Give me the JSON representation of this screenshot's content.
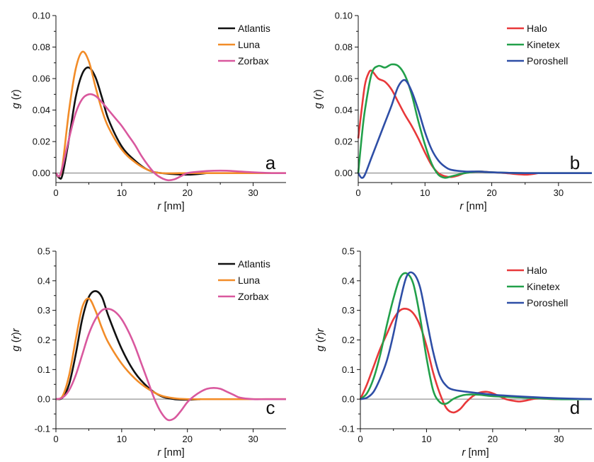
{
  "chart_data": [
    {
      "type": "line",
      "panel_label": "a",
      "xlabel": "r [nm]",
      "ylabel": "g (r)",
      "xlim": [
        0,
        35
      ],
      "ylim": [
        -0.006,
        0.1
      ],
      "xticks": [
        "0",
        "10",
        "20",
        "30"
      ],
      "yticks": [
        "0.00",
        "0.02",
        "0.04",
        "0.06",
        "0.08",
        "0.10"
      ],
      "legend_position": "top-right",
      "series": [
        {
          "name": "Atlantis",
          "color": "#111111",
          "x": [
            0,
            0.5,
            1,
            2,
            3,
            4,
            5,
            6,
            7,
            8,
            10,
            12,
            14,
            16,
            20,
            23
          ],
          "y": [
            0.0,
            -0.003,
            -0.001,
            0.022,
            0.048,
            0.063,
            0.067,
            0.061,
            0.048,
            0.034,
            0.017,
            0.008,
            0.002,
            0.0,
            -0.001,
            0.0
          ]
        },
        {
          "name": "Luna",
          "color": "#f28c28",
          "x": [
            0,
            0.5,
            1,
            2,
            3,
            4,
            5,
            6,
            7,
            8,
            10,
            12,
            14,
            16,
            20,
            25,
            35
          ],
          "y": [
            0.0,
            -0.002,
            0.005,
            0.04,
            0.066,
            0.077,
            0.071,
            0.055,
            0.04,
            0.029,
            0.015,
            0.007,
            0.002,
            0.0,
            0.0,
            0.0,
            0.0
          ]
        },
        {
          "name": "Zorbax",
          "color": "#d9589e",
          "x": [
            0,
            0.5,
            1,
            2,
            3,
            4,
            5,
            6,
            7,
            8,
            9,
            10,
            11,
            12,
            13,
            14,
            15,
            16,
            17,
            18,
            19,
            20,
            22,
            24,
            26,
            28,
            30,
            33,
            35
          ],
          "y": [
            0.0,
            -0.002,
            0.004,
            0.022,
            0.038,
            0.047,
            0.05,
            0.049,
            0.045,
            0.04,
            0.035,
            0.03,
            0.024,
            0.018,
            0.011,
            0.005,
            0.0,
            -0.003,
            -0.0045,
            -0.004,
            -0.002,
            0.0,
            0.001,
            0.0015,
            0.0015,
            0.001,
            0.0005,
            0.0,
            0.0
          ]
        }
      ]
    },
    {
      "type": "line",
      "panel_label": "b",
      "xlabel": "r [nm]",
      "ylabel": "g (r)",
      "xlim": [
        0,
        35
      ],
      "ylim": [
        -0.006,
        0.1
      ],
      "xticks": [
        "0",
        "10",
        "20",
        "30"
      ],
      "yticks": [
        "0.00",
        "0.02",
        "0.04",
        "0.06",
        "0.08",
        "0.10"
      ],
      "legend_position": "top-right",
      "series": [
        {
          "name": "Halo",
          "color": "#e8383a",
          "x": [
            0,
            0.5,
            1,
            1.5,
            2,
            3,
            4,
            5,
            6,
            7,
            8,
            9,
            10,
            11,
            12,
            13,
            14,
            15,
            16,
            18,
            20,
            22,
            25,
            27
          ],
          "y": [
            0.022,
            0.04,
            0.056,
            0.063,
            0.065,
            0.06,
            0.058,
            0.053,
            0.045,
            0.037,
            0.03,
            0.022,
            0.013,
            0.005,
            0.0,
            -0.002,
            -0.0025,
            -0.0015,
            0.0,
            0.001,
            0.0005,
            0.0,
            -0.001,
            0.0
          ]
        },
        {
          "name": "Kinetex",
          "color": "#22a04a",
          "x": [
            0,
            0.5,
            1,
            2,
            3,
            4,
            5,
            6,
            7,
            8,
            9,
            10,
            11,
            12,
            13,
            14,
            16,
            18,
            20,
            25,
            30,
            35
          ],
          "y": [
            0.0,
            0.022,
            0.04,
            0.063,
            0.068,
            0.067,
            0.069,
            0.068,
            0.062,
            0.05,
            0.033,
            0.018,
            0.006,
            -0.001,
            -0.003,
            -0.002,
            0.0,
            0.001,
            0.0005,
            0.0,
            0.0,
            0.0
          ]
        },
        {
          "name": "Poroshell",
          "color": "#2e4ea6",
          "x": [
            0,
            0.5,
            1,
            2,
            3,
            4,
            5,
            6,
            7,
            8,
            9,
            10,
            11,
            12,
            13,
            14,
            16,
            18,
            20,
            25,
            30,
            35
          ],
          "y": [
            0.0,
            -0.003,
            -0.001,
            0.01,
            0.021,
            0.032,
            0.043,
            0.055,
            0.059,
            0.052,
            0.04,
            0.026,
            0.015,
            0.008,
            0.004,
            0.002,
            0.001,
            0.001,
            0.0005,
            0.0,
            0.0,
            0.0
          ]
        }
      ]
    },
    {
      "type": "line",
      "panel_label": "c",
      "xlabel": "r [nm]",
      "ylabel": "g (r)r",
      "xlim": [
        0,
        35
      ],
      "ylim": [
        -0.1,
        0.5
      ],
      "xticks": [
        "0",
        "10",
        "20",
        "30"
      ],
      "yticks": [
        "-0.1",
        "0.0",
        "0.1",
        "0.2",
        "0.3",
        "0.4",
        "0.5"
      ],
      "legend_position": "top-right",
      "series": [
        {
          "name": "Atlantis",
          "color": "#111111",
          "x": [
            0,
            1,
            2,
            3,
            4,
            5,
            6,
            7,
            8,
            10,
            12,
            14,
            16,
            18,
            20,
            22
          ],
          "y": [
            0.0,
            0.005,
            0.05,
            0.15,
            0.27,
            0.345,
            0.365,
            0.345,
            0.28,
            0.17,
            0.09,
            0.04,
            0.01,
            0.0,
            -0.002,
            0.0
          ]
        },
        {
          "name": "Luna",
          "color": "#f28c28",
          "x": [
            0,
            1,
            2,
            3,
            4,
            5,
            6,
            7,
            8,
            10,
            12,
            14,
            16,
            18,
            20,
            25,
            30,
            35
          ],
          "y": [
            0.0,
            0.01,
            0.08,
            0.2,
            0.31,
            0.34,
            0.3,
            0.24,
            0.19,
            0.12,
            0.07,
            0.035,
            0.012,
            0.003,
            0.0,
            0.0,
            0.0,
            0.0
          ]
        },
        {
          "name": "Zorbax",
          "color": "#d9589e",
          "x": [
            0,
            1,
            2,
            3,
            4,
            5,
            6,
            7,
            8,
            9,
            10,
            11,
            12,
            13,
            14,
            15,
            16,
            17,
            18,
            19,
            20,
            21,
            22,
            23,
            24,
            25,
            26,
            27,
            28,
            30,
            32,
            35
          ],
          "y": [
            0.0,
            0.005,
            0.03,
            0.08,
            0.15,
            0.22,
            0.27,
            0.3,
            0.305,
            0.295,
            0.27,
            0.23,
            0.18,
            0.12,
            0.06,
            0.0,
            -0.045,
            -0.07,
            -0.065,
            -0.04,
            -0.01,
            0.01,
            0.025,
            0.035,
            0.038,
            0.035,
            0.025,
            0.015,
            0.005,
            0.0,
            0.0,
            0.0
          ]
        }
      ]
    },
    {
      "type": "line",
      "panel_label": "d",
      "xlabel": "r [nm]",
      "ylabel": "g (r)r",
      "xlim": [
        0,
        35
      ],
      "ylim": [
        -0.1,
        0.5
      ],
      "xticks": [
        "0",
        "10",
        "20",
        "30"
      ],
      "yticks": [
        "-0.1",
        "0.0",
        "0.1",
        "0.2",
        "0.3",
        "0.4",
        "0.5"
      ],
      "legend_position": "top-right",
      "series": [
        {
          "name": "Halo",
          "color": "#e8383a",
          "x": [
            0,
            1,
            2,
            3,
            4,
            5,
            6,
            7,
            8,
            9,
            10,
            11,
            12,
            13,
            14,
            15,
            16,
            17,
            18,
            19,
            20,
            21,
            22,
            23,
            24,
            25,
            26,
            27,
            30,
            35
          ],
          "y": [
            0.0,
            0.05,
            0.11,
            0.17,
            0.22,
            0.27,
            0.3,
            0.305,
            0.29,
            0.25,
            0.18,
            0.09,
            0.02,
            -0.03,
            -0.045,
            -0.035,
            -0.01,
            0.01,
            0.022,
            0.025,
            0.02,
            0.01,
            0.0,
            -0.005,
            -0.008,
            -0.005,
            0.0,
            0.002,
            0.0,
            0.0
          ]
        },
        {
          "name": "Kinetex",
          "color": "#22a04a",
          "x": [
            0,
            1,
            2,
            3,
            4,
            5,
            6,
            7,
            8,
            9,
            10,
            11,
            12,
            13,
            14,
            15,
            16,
            18,
            20,
            25,
            30,
            35
          ],
          "y": [
            0.0,
            0.02,
            0.07,
            0.15,
            0.25,
            0.34,
            0.41,
            0.425,
            0.39,
            0.28,
            0.14,
            0.03,
            -0.01,
            -0.015,
            0.0,
            0.01,
            0.015,
            0.015,
            0.01,
            0.005,
            0.0,
            0.0
          ]
        },
        {
          "name": "Poroshell",
          "color": "#2e4ea6",
          "x": [
            0,
            1,
            2,
            3,
            4,
            5,
            6,
            7,
            8,
            9,
            10,
            11,
            12,
            13,
            14,
            16,
            18,
            20,
            25,
            30,
            35
          ],
          "y": [
            0.0,
            0.005,
            0.025,
            0.07,
            0.13,
            0.22,
            0.33,
            0.415,
            0.425,
            0.38,
            0.27,
            0.16,
            0.08,
            0.045,
            0.032,
            0.025,
            0.02,
            0.015,
            0.008,
            0.003,
            0.0
          ]
        }
      ]
    }
  ]
}
